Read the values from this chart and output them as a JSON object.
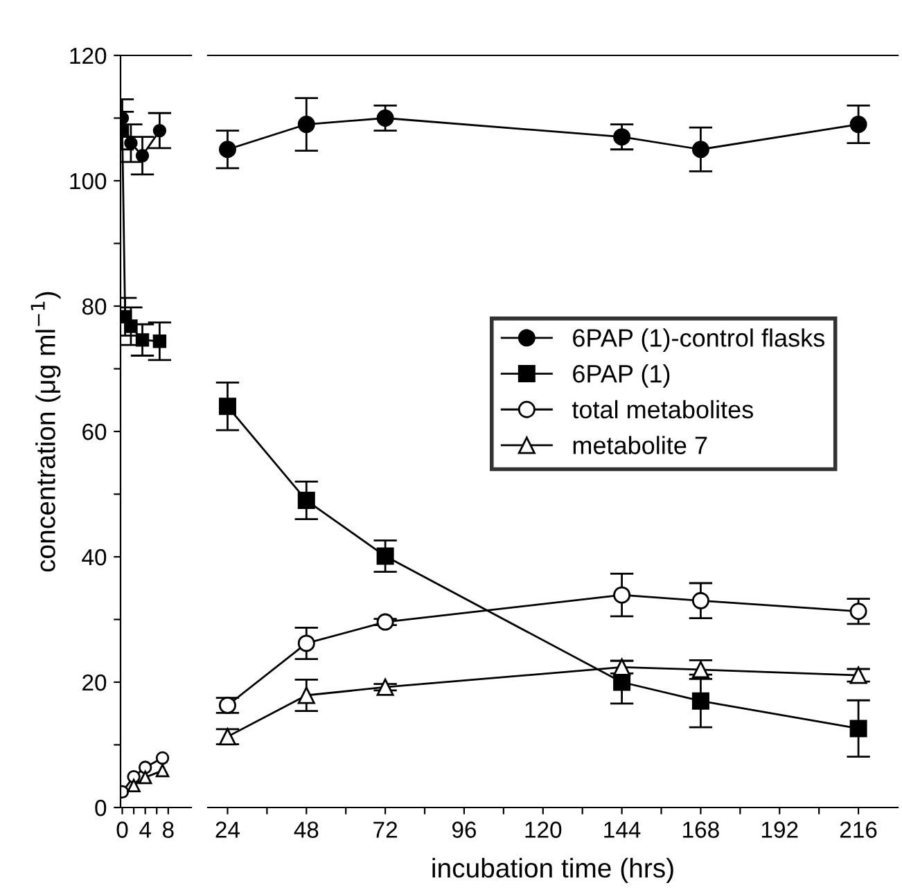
{
  "chart_data": [
    {
      "type": "line",
      "ylabel": "concentration (μg ml$^{−1}$)",
      "ylim": [
        0,
        120
      ],
      "yticks": [
        0,
        {
          "value": 10,
          "label": null
        },
        20,
        {
          "value": 30,
          "label": null
        },
        40,
        {
          "value": 50,
          "label": null
        },
        60,
        {
          "value": 70,
          "label": null
        },
        80,
        {
          "value": 90,
          "label": null
        },
        100,
        {
          "value": 110,
          "label": null
        },
        120
      ],
      "xlim": [
        -0.3,
        12
      ],
      "xticks": [
        0,
        {
          "value": 2,
          "label": null
        },
        4,
        {
          "value": 6,
          "label": null
        },
        8
      ],
      "grid": false,
      "legend": false,
      "series": [
        {
          "color": "#000000",
          "marker": "circle",
          "x": [
            0,
            1.5,
            3.5,
            6.5
          ],
          "values": [
            110,
            106,
            104,
            108
          ],
          "errors": [
            3,
            3,
            3,
            2.8
          ]
        },
        {
          "color": "#000000",
          "marker": "square",
          "x": [
            0,
            0.5,
            1.5,
            3.5,
            6.5
          ],
          "values": [
            108,
            78.3,
            76.8,
            74.6,
            74.4
          ],
          "errors": [
            3,
            3,
            3,
            2.5,
            3
          ]
        },
        {
          "color": "#000000",
          "marker": "circle",
          "x": [
            0,
            2,
            4,
            7
          ],
          "values": [
            2.5,
            4.9,
            6.4,
            7.9
          ]
        },
        {
          "color": "#000000",
          "marker": "triangle",
          "x": [
            2,
            4,
            7
          ],
          "values": [
            3.5,
            4.8,
            5.9
          ]
        }
      ]
    },
    {
      "type": "line",
      "xlabel": "incubation time (hrs)",
      "ylim": [
        0,
        120
      ],
      "xlim": [
        18,
        228
      ],
      "xticks": [
        24,
        {
          "value": 36,
          "label": null
        },
        48,
        {
          "value": 60,
          "label": null
        },
        72,
        {
          "value": 84,
          "label": null
        },
        96,
        {
          "value": 108,
          "label": null
        },
        120,
        {
          "value": 132,
          "label": null
        },
        144,
        {
          "value": 156,
          "label": null
        },
        168,
        {
          "value": 180,
          "label": null
        },
        192,
        {
          "value": 204,
          "label": null
        },
        216
      ],
      "tick_labels": "x",
      "grid": false,
      "legend": "right",
      "series": [
        {
          "name": "6PAP (1)-control flasks",
          "color": "#000000",
          "marker": "circle",
          "x": [
            24,
            48,
            72,
            144,
            168,
            216
          ],
          "values": [
            105,
            109,
            110,
            107,
            105,
            109
          ],
          "errors": [
            3,
            4.2,
            2,
            2,
            3.5,
            3
          ]
        },
        {
          "name": "6PAP (1)",
          "color": "#000000",
          "marker": "square",
          "x": [
            24,
            48,
            72,
            144,
            168,
            216
          ],
          "values": [
            64,
            49,
            40.1,
            20,
            17,
            12.6
          ],
          "errors": [
            3.8,
            3,
            2.5,
            3.4,
            4.2,
            4.5
          ]
        },
        {
          "name": "total metabolites",
          "color": "#000000",
          "marker": "circle",
          "x": [
            24,
            48,
            72,
            144,
            168,
            216
          ],
          "values": [
            16.3,
            26.2,
            29.6,
            33.9,
            33,
            31.3
          ],
          "errors": [
            1.2,
            2.5,
            0.5,
            3.4,
            2.8,
            2
          ]
        },
        {
          "name": "metabolite 7",
          "color": "#000000",
          "marker": "triangle",
          "x": [
            24,
            48,
            72,
            144,
            168,
            216
          ],
          "values": [
            11.3,
            17.9,
            19.2,
            22.4,
            22,
            21.1
          ],
          "errors": [
            1.2,
            2.5,
            0.5,
            1,
            1.5,
            1
          ]
        }
      ]
    }
  ]
}
